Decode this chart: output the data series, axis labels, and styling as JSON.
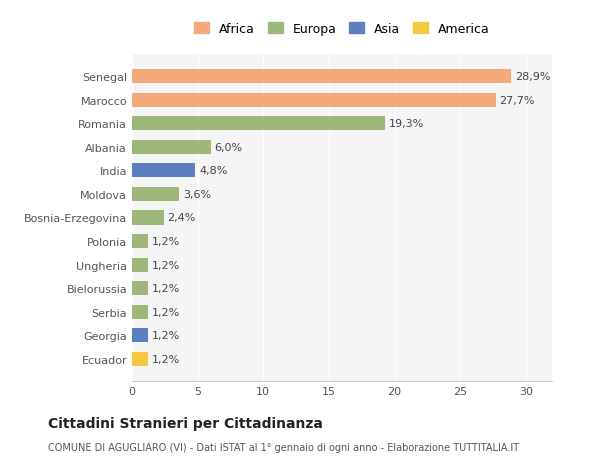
{
  "categories": [
    "Ecuador",
    "Georgia",
    "Serbia",
    "Bielorussia",
    "Ungheria",
    "Polonia",
    "Bosnia-Erzegovina",
    "Moldova",
    "India",
    "Albania",
    "Romania",
    "Marocco",
    "Senegal"
  ],
  "values": [
    1.2,
    1.2,
    1.2,
    1.2,
    1.2,
    1.2,
    2.4,
    3.6,
    4.8,
    6.0,
    19.3,
    27.7,
    28.9
  ],
  "colors": [
    "#F5C842",
    "#5B7FBF",
    "#9DB87A",
    "#9DB87A",
    "#9DB87A",
    "#9DB87A",
    "#9DB87A",
    "#9DB87A",
    "#5B7FBF",
    "#9DB87A",
    "#9DB87A",
    "#F4A97A",
    "#F4A97A"
  ],
  "labels": [
    "1,2%",
    "1,2%",
    "1,2%",
    "1,2%",
    "1,2%",
    "1,2%",
    "2,4%",
    "3,6%",
    "4,8%",
    "6,0%",
    "19,3%",
    "27,7%",
    "28,9%"
  ],
  "legend_labels": [
    "Africa",
    "Europa",
    "Asia",
    "America"
  ],
  "legend_colors": [
    "#F4A97A",
    "#9DB87A",
    "#5B7FBF",
    "#F5C842"
  ],
  "title": "Cittadini Stranieri per Cittadinanza",
  "subtitle": "COMUNE DI AGUGLIARO (VI) - Dati ISTAT al 1° gennaio di ogni anno - Elaborazione TUTTITALIA.IT",
  "xlim": [
    0,
    32
  ],
  "xticks": [
    0,
    5,
    10,
    15,
    20,
    25,
    30
  ],
  "background_color": "#FFFFFF",
  "plot_bg_color": "#F5F5F5"
}
